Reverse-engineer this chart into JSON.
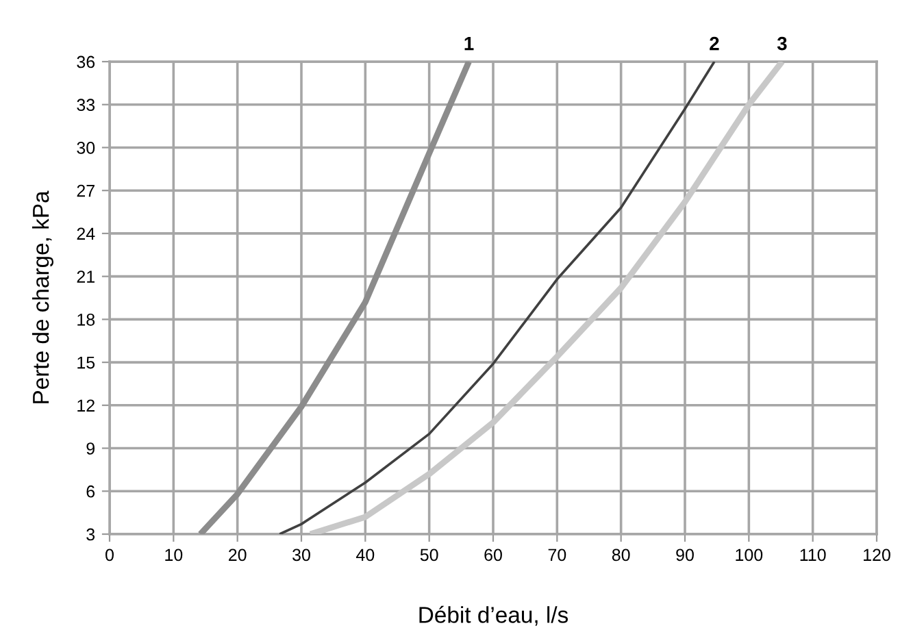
{
  "chart_data": {
    "type": "line",
    "xlabel": "Débit d’eau, l/s",
    "ylabel": "Perte de charge, kPa",
    "xlim": [
      0,
      120
    ],
    "xticks": [
      0,
      10,
      20,
      30,
      40,
      50,
      60,
      70,
      80,
      90,
      100,
      110,
      120
    ],
    "ylim": [
      3,
      36
    ],
    "yticks": [
      3,
      6,
      9,
      12,
      15,
      18,
      21,
      24,
      27,
      30,
      33,
      36
    ],
    "grid": true,
    "legend": false,
    "marker": "none",
    "line_style": "solid",
    "series": [
      {
        "name": "1",
        "color": "#8c8c8c",
        "x": [
          14.2,
          20,
          30,
          40,
          50,
          56.2
        ],
        "values": [
          3,
          5.8,
          11.9,
          19.2,
          29.6,
          36
        ]
      },
      {
        "name": "2",
        "color": "#404040",
        "x": [
          26.6,
          30,
          40,
          50,
          60,
          70,
          80,
          90,
          94.6
        ],
        "values": [
          3,
          3.7,
          6.6,
          10.0,
          14.9,
          20.8,
          25.8,
          32.7,
          36
        ]
      },
      {
        "name": "3",
        "color": "#c8c8c8",
        "x": [
          31.4,
          40,
          50,
          60,
          70,
          80,
          90,
          100,
          105.2
        ],
        "values": [
          3,
          4.2,
          7.2,
          10.8,
          15.4,
          20.2,
          26.2,
          33.0,
          36
        ]
      }
    ]
  }
}
